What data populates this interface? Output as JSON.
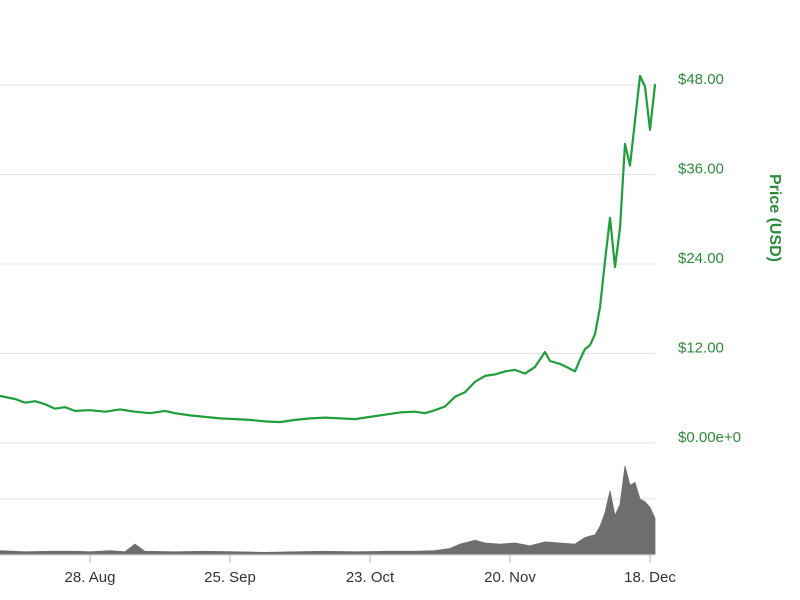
{
  "chart_data": {
    "type": "line",
    "ylabel": "Price (USD)",
    "colors": {
      "price_line": "#1f9e3a",
      "volume_fill": "#6e6e6e",
      "grid": "#e3e3e3",
      "axis_text": "#2e8b3b",
      "x_text": "#333333"
    },
    "y_ticks": [
      "$0.00e+0",
      "$12.00",
      "$24.00",
      "$36.00",
      "$48.00"
    ],
    "y_tick_values": [
      0,
      12,
      24,
      36,
      48
    ],
    "ylim": [
      0,
      48
    ],
    "x_ticks": [
      "28. Aug",
      "25. Sep",
      "23. Oct",
      "20. Nov",
      "18. Dec"
    ],
    "x_tick_dates": [
      "2017-08-28",
      "2017-09-25",
      "2017-10-23",
      "2017-11-20",
      "2017-12-18"
    ],
    "xlim": [
      "2017-08-10",
      "2017-12-19"
    ],
    "grid": true,
    "legend": "none",
    "series": [
      {
        "values": [
          [
            "2017-08-10",
            6.3
          ],
          [
            "2017-08-13",
            5.9
          ],
          [
            "2017-08-15",
            5.4
          ],
          [
            "2017-08-17",
            5.6
          ],
          [
            "2017-08-19",
            5.2
          ],
          [
            "2017-08-21",
            4.6
          ],
          [
            "2017-08-23",
            4.8
          ],
          [
            "2017-08-25",
            4.3
          ],
          [
            "2017-08-28",
            4.4
          ],
          [
            "2017-08-31",
            4.2
          ],
          [
            "2017-09-03",
            4.5
          ],
          [
            "2017-09-06",
            4.2
          ],
          [
            "2017-09-09",
            4.0
          ],
          [
            "2017-09-12",
            4.3
          ],
          [
            "2017-09-14",
            4.0
          ],
          [
            "2017-09-17",
            3.7
          ],
          [
            "2017-09-20",
            3.5
          ],
          [
            "2017-09-23",
            3.3
          ],
          [
            "2017-09-26",
            3.2
          ],
          [
            "2017-09-29",
            3.1
          ],
          [
            "2017-10-02",
            2.9
          ],
          [
            "2017-10-05",
            2.8
          ],
          [
            "2017-10-08",
            3.1
          ],
          [
            "2017-10-11",
            3.3
          ],
          [
            "2017-10-14",
            3.4
          ],
          [
            "2017-10-17",
            3.3
          ],
          [
            "2017-10-20",
            3.2
          ],
          [
            "2017-10-23",
            3.5
          ],
          [
            "2017-10-26",
            3.8
          ],
          [
            "2017-10-29",
            4.1
          ],
          [
            "2017-11-01",
            4.2
          ],
          [
            "2017-11-03",
            4.0
          ],
          [
            "2017-11-05",
            4.4
          ],
          [
            "2017-11-07",
            4.9
          ],
          [
            "2017-11-09",
            6.2
          ],
          [
            "2017-11-11",
            6.8
          ],
          [
            "2017-11-13",
            8.2
          ],
          [
            "2017-11-15",
            9.0
          ],
          [
            "2017-11-17",
            9.2
          ],
          [
            "2017-11-19",
            9.6
          ],
          [
            "2017-11-21",
            9.8
          ],
          [
            "2017-11-23",
            9.3
          ],
          [
            "2017-11-25",
            10.2
          ],
          [
            "2017-11-27",
            12.2
          ],
          [
            "2017-11-28",
            11.0
          ],
          [
            "2017-11-30",
            10.6
          ],
          [
            "2017-12-01",
            10.3
          ],
          [
            "2017-12-03",
            9.6
          ],
          [
            "2017-12-04",
            11.2
          ],
          [
            "2017-12-05",
            12.6
          ],
          [
            "2017-12-06",
            13.1
          ],
          [
            "2017-12-07",
            14.6
          ],
          [
            "2017-12-08",
            18.2
          ],
          [
            "2017-12-09",
            24.4
          ],
          [
            "2017-12-10",
            30.2
          ],
          [
            "2017-12-11",
            23.6
          ],
          [
            "2017-12-12",
            28.8
          ],
          [
            "2017-12-13",
            40.1
          ],
          [
            "2017-12-14",
            37.2
          ],
          [
            "2017-12-15",
            43.2
          ],
          [
            "2017-12-16",
            49.2
          ],
          [
            "2017-12-17",
            47.8
          ],
          [
            "2017-12-18",
            42.0
          ],
          [
            "2017-12-19",
            48.0
          ]
        ]
      }
    ],
    "volume_series": {
      "values": [
        [
          "2017-08-10",
          0.06
        ],
        [
          "2017-08-15",
          0.04
        ],
        [
          "2017-08-20",
          0.05
        ],
        [
          "2017-08-25",
          0.05
        ],
        [
          "2017-08-28",
          0.04
        ],
        [
          "2017-09-01",
          0.06
        ],
        [
          "2017-09-04",
          0.04
        ],
        [
          "2017-09-06",
          0.18
        ],
        [
          "2017-09-08",
          0.05
        ],
        [
          "2017-09-14",
          0.04
        ],
        [
          "2017-09-20",
          0.05
        ],
        [
          "2017-09-26",
          0.04
        ],
        [
          "2017-10-02",
          0.03
        ],
        [
          "2017-10-08",
          0.04
        ],
        [
          "2017-10-14",
          0.05
        ],
        [
          "2017-10-20",
          0.04
        ],
        [
          "2017-10-26",
          0.05
        ],
        [
          "2017-11-01",
          0.05
        ],
        [
          "2017-11-05",
          0.06
        ],
        [
          "2017-11-08",
          0.1
        ],
        [
          "2017-11-10",
          0.18
        ],
        [
          "2017-11-13",
          0.25
        ],
        [
          "2017-11-15",
          0.2
        ],
        [
          "2017-11-18",
          0.18
        ],
        [
          "2017-11-21",
          0.2
        ],
        [
          "2017-11-24",
          0.15
        ],
        [
          "2017-11-27",
          0.22
        ],
        [
          "2017-11-30",
          0.2
        ],
        [
          "2017-12-03",
          0.18
        ],
        [
          "2017-12-05",
          0.3
        ],
        [
          "2017-12-07",
          0.35
        ],
        [
          "2017-12-08",
          0.5
        ],
        [
          "2017-12-09",
          0.75
        ],
        [
          "2017-12-10",
          1.15
        ],
        [
          "2017-12-11",
          0.7
        ],
        [
          "2017-12-12",
          0.9
        ],
        [
          "2017-12-13",
          1.6
        ],
        [
          "2017-12-14",
          1.25
        ],
        [
          "2017-12-15",
          1.3
        ],
        [
          "2017-12-16",
          1.0
        ],
        [
          "2017-12-17",
          0.95
        ],
        [
          "2017-12-18",
          0.85
        ],
        [
          "2017-12-19",
          0.65
        ]
      ],
      "ylim": [
        0,
        1.8
      ]
    }
  }
}
